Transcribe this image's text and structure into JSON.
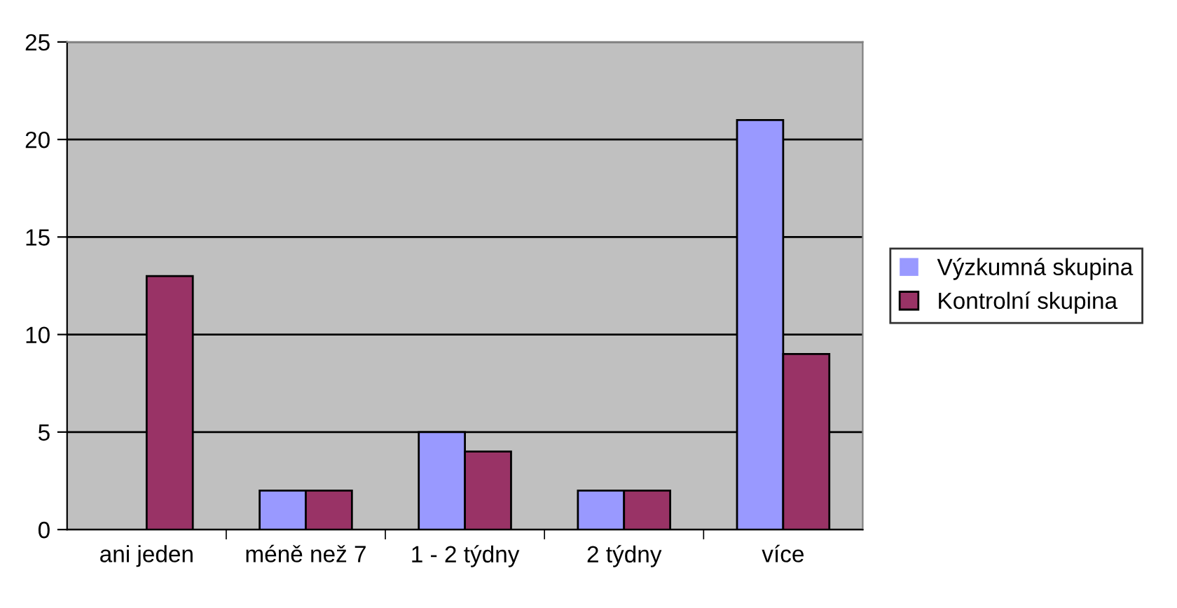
{
  "chart_data": {
    "type": "bar",
    "categories": [
      "ani jeden",
      "méně než 7",
      "1 - 2 týdny",
      "2 týdny",
      "více"
    ],
    "series": [
      {
        "name": "Výzkumná skupina",
        "color": "#9999ff",
        "values": [
          0,
          2,
          5,
          2,
          21
        ]
      },
      {
        "name": "Kontrolní skupina",
        "color": "#993366",
        "values": [
          13,
          2,
          4,
          2,
          9
        ]
      }
    ],
    "ylim": [
      0,
      25
    ],
    "yticks": [
      0,
      5,
      10,
      15,
      20,
      25
    ],
    "grid": "y",
    "legend": "right"
  }
}
